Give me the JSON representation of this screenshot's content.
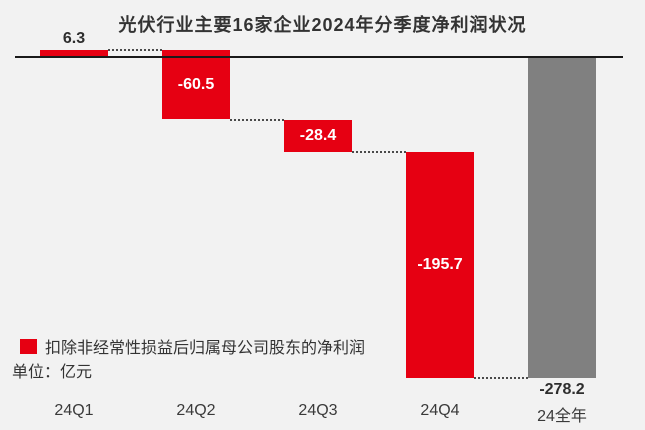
{
  "chart_data": {
    "type": "bar",
    "subtype": "waterfall",
    "title": "光伏行业主要16家企业2024年分季度净利润状况",
    "unit_label": "单位：亿元",
    "legend": {
      "label": "扣除非经常性损益后归属母公司股东的净利润",
      "swatch_color": "#e60012"
    },
    "categories": [
      "24Q1",
      "24Q2",
      "24Q3",
      "24Q4",
      "24全年"
    ],
    "values": [
      6.3,
      -60.5,
      -28.4,
      -195.7,
      -278.2
    ],
    "value_labels": [
      "6.3",
      "-60.5",
      "-28.4",
      "-195.7",
      "-278.2"
    ],
    "bar_kinds": [
      "delta",
      "delta",
      "delta",
      "delta",
      "total"
    ],
    "label_positions": [
      "above",
      "inside",
      "inside",
      "inside",
      "below"
    ],
    "series": [
      {
        "name": "扣除非经常性损益后归属母公司股东的净利润",
        "values": [
          6.3,
          -60.5,
          -28.4,
          -195.7,
          -278.2
        ]
      }
    ],
    "ylim": [
      -290,
      10
    ],
    "grid": false,
    "legend_position": "bottom-left",
    "colors": {
      "delta_bar": "#e60012",
      "total_bar": "#808080",
      "background": "#f2f2f2",
      "text": "#333333",
      "bar_label_text": "#ffffff",
      "axis_line": "#1a1a1a",
      "connector": "#4a4a4a"
    }
  }
}
